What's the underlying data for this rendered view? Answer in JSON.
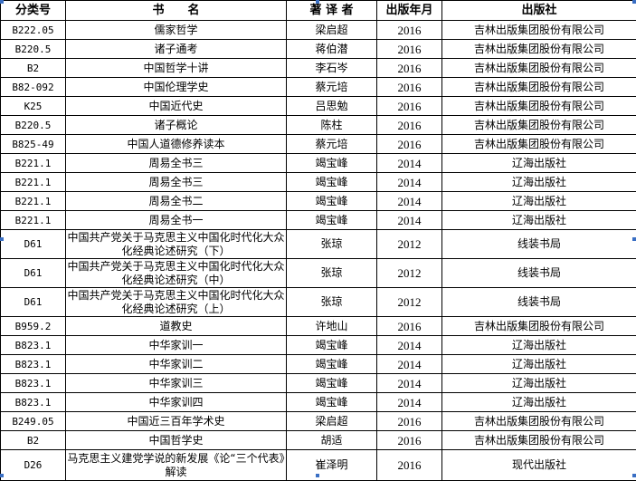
{
  "headers": {
    "code": "分类号",
    "title": "书　　名",
    "author": "著 译 者",
    "year": "出版年月",
    "publisher": "出版社"
  },
  "rows": [
    {
      "code": "B222.05",
      "title": "儒家哲学",
      "author": "梁启超",
      "year": "2016",
      "publisher": "吉林出版集团股份有限公司"
    },
    {
      "code": "B220.5",
      "title": "诸子通考",
      "author": "蒋伯潜",
      "year": "2016",
      "publisher": "吉林出版集团股份有限公司"
    },
    {
      "code": "B2",
      "title": "中国哲学十讲",
      "author": "李石岑",
      "year": "2016",
      "publisher": "吉林出版集团股份有限公司"
    },
    {
      "code": "B82-092",
      "title": "中国伦理学史",
      "author": "蔡元培",
      "year": "2016",
      "publisher": "吉林出版集团股份有限公司"
    },
    {
      "code": "K25",
      "title": "中国近代史",
      "author": "吕思勉",
      "year": "2016",
      "publisher": "吉林出版集团股份有限公司"
    },
    {
      "code": "B220.5",
      "title": "诸子概论",
      "author": "陈柱",
      "year": "2016",
      "publisher": "吉林出版集团股份有限公司"
    },
    {
      "code": "B825-49",
      "title": "中国人道德修养读本",
      "author": "蔡元培",
      "year": "2016",
      "publisher": "吉林出版集团股份有限公司"
    },
    {
      "code": "B221.1",
      "title": "周易全书三",
      "author": "竭宝峰",
      "year": "2014",
      "publisher": "辽海出版社"
    },
    {
      "code": "B221.1",
      "title": "周易全书三",
      "author": "竭宝峰",
      "year": "2014",
      "publisher": "辽海出版社"
    },
    {
      "code": "B221.1",
      "title": "周易全书二",
      "author": "竭宝峰",
      "year": "2014",
      "publisher": "辽海出版社"
    },
    {
      "code": "B221.1",
      "title": "周易全书一",
      "author": "竭宝峰",
      "year": "2014",
      "publisher": "辽海出版社"
    },
    {
      "code": "D61",
      "title": "中国共产党关于马克思主义中国化时代化大众化经典论述研究（下）",
      "author": "张琼",
      "year": "2012",
      "publisher": "线装书局"
    },
    {
      "code": "D61",
      "title": "中国共产党关于马克思主义中国化时代化大众化经典论述研究（中）",
      "author": "张琼",
      "year": "2012",
      "publisher": "线装书局"
    },
    {
      "code": "D61",
      "title": "中国共产党关于马克思主义中国化时代化大众化经典论述研究（上）",
      "author": "张琼",
      "year": "2012",
      "publisher": "线装书局"
    },
    {
      "code": "B959.2",
      "title": "道教史",
      "author": "许地山",
      "year": "2016",
      "publisher": "吉林出版集团股份有限公司"
    },
    {
      "code": "B823.1",
      "title": "中华家训一",
      "author": "竭宝峰",
      "year": "2014",
      "publisher": "辽海出版社"
    },
    {
      "code": "B823.1",
      "title": "中华家训二",
      "author": "竭宝峰",
      "year": "2014",
      "publisher": "辽海出版社"
    },
    {
      "code": "B823.1",
      "title": "中华家训三",
      "author": "竭宝峰",
      "year": "2014",
      "publisher": "辽海出版社"
    },
    {
      "code": "B823.1",
      "title": "中华家训四",
      "author": "竭宝峰",
      "year": "2014",
      "publisher": "辽海出版社"
    },
    {
      "code": "B249.05",
      "title": "中国近三百年学术史",
      "author": "梁启超",
      "year": "2016",
      "publisher": "吉林出版集团股份有限公司"
    },
    {
      "code": "B2",
      "title": "中国哲学史",
      "author": "胡适",
      "year": "2016",
      "publisher": "吉林出版集团股份有限公司"
    },
    {
      "code": "D26",
      "title": "马克思主义建党学说的新发展《论“三个代表》解读",
      "author": "崔泽明",
      "year": "2016",
      "publisher": "现代出版社"
    }
  ],
  "colors": {
    "border": "#000000",
    "selection_handle": "#3a6fc4"
  }
}
